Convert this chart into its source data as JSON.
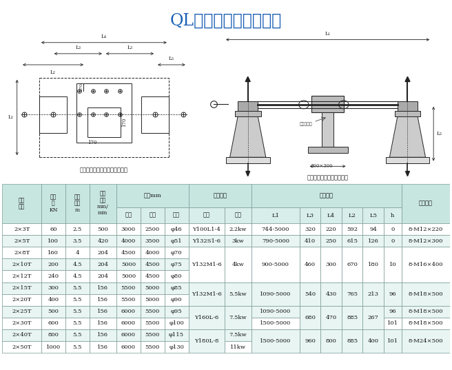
{
  "title": "QL双吹点螺杆式启闭机",
  "title_color": "#1a5fb4",
  "bg_color": "#ffffff",
  "table_header_bg": "#c8e6e0",
  "table_subheader_bg": "#d8eeea",
  "table_row_bg1": "#ffffff",
  "table_row_bg2": "#e8f5f2",
  "diagram_label_left": "双吹点螺杆式启闭机基础布置图",
  "diagram_label_right": "双吹点螺杆式启闭机外形图",
  "col_widths": [
    6.5,
    4,
    4,
    4.5,
    4,
    4,
    4,
    6,
    4.5,
    8,
    3.5,
    3.5,
    3.5,
    3.5,
    3,
    8
  ],
  "rows": [
    [
      "2×3T",
      "60",
      "2.5",
      "500",
      "3000",
      "2500",
      "φ46",
      "Y100L1-4",
      "2.2kw",
      "744-5000",
      "320",
      "220",
      "592",
      "94",
      "0",
      "8-M12×220"
    ],
    [
      "2×5T",
      "100",
      "3.5",
      "420",
      "4000",
      "3500",
      "φ51",
      "Y132S1-6",
      "3kw",
      "790-5000",
      "410",
      "250",
      "615",
      "126",
      "0",
      "8-M12×300"
    ],
    [
      "2×8T",
      "160",
      "4",
      "204",
      "4500",
      "4000",
      "φ70",
      "Y132M1-6",
      "4kw",
      "900-5000",
      "460",
      "300",
      "670",
      "180",
      "10",
      "8-M16×400"
    ],
    [
      "2×10T",
      "200",
      "4.5",
      "204",
      "5000",
      "4500",
      "φ75",
      "",
      "",
      "",
      "",
      "",
      "",
      "",
      "",
      ""
    ],
    [
      "2×12T",
      "240",
      "4.5",
      "204",
      "5000",
      "4500",
      "φ80",
      "",
      "",
      "",
      "",
      "",
      "",
      "",
      "",
      ""
    ],
    [
      "2×15T",
      "300",
      "5.5",
      "156",
      "5500",
      "5000",
      "φ85",
      "Y132M1-6",
      "5.5kw",
      "1090-5000",
      "540",
      "430",
      "765",
      "213",
      "96",
      "8-M18×500"
    ],
    [
      "2×20T",
      "400",
      "5.5",
      "156",
      "5500",
      "5000",
      "φ90",
      "",
      "",
      "",
      "",
      "",
      "",
      "",
      "",
      ""
    ],
    [
      "2×25T",
      "500",
      "5.5",
      "156",
      "6000",
      "5500",
      "φ95",
      "Y160L-6",
      "7.5kw",
      "1090-5000",
      "680",
      "470",
      "885",
      "267",
      "96",
      "8-M18×500"
    ],
    [
      "2×30T",
      "600",
      "5.5",
      "156",
      "6000",
      "5500",
      "φ100",
      "",
      "",
      "1500-5000",
      "",
      "",
      "",
      "",
      "101",
      "8-M18×500"
    ],
    [
      "2×40T",
      "800",
      "5.5",
      "156",
      "6000",
      "5500",
      "φ115",
      "Y180L-8",
      "7.5kw",
      "1500-5000",
      "960",
      "800",
      "885",
      "400",
      "101",
      "8-M24×500"
    ],
    [
      "2×50T",
      "1000",
      "5.5",
      "156",
      "6000",
      "5500",
      "φ130",
      "",
      "11kw",
      "",
      "",
      "",
      "",
      "",
      "",
      ""
    ]
  ],
  "merges": [
    {
      "rows": [
        2,
        4
      ],
      "col": 7,
      "text": "Y132M1-6"
    },
    {
      "rows": [
        2,
        4
      ],
      "col": 8,
      "text": "4kw"
    },
    {
      "rows": [
        2,
        4
      ],
      "col": 9,
      "text": "900-5000"
    },
    {
      "rows": [
        2,
        4
      ],
      "col": 10,
      "text": "460"
    },
    {
      "rows": [
        2,
        4
      ],
      "col": 11,
      "text": "300"
    },
    {
      "rows": [
        2,
        4
      ],
      "col": 12,
      "text": "670"
    },
    {
      "rows": [
        2,
        4
      ],
      "col": 13,
      "text": "180"
    },
    {
      "rows": [
        2,
        4
      ],
      "col": 14,
      "text": "10"
    },
    {
      "rows": [
        2,
        4
      ],
      "col": 15,
      "text": "8-M16×400"
    },
    {
      "rows": [
        5,
        6
      ],
      "col": 7,
      "text": "Y132M1-6"
    },
    {
      "rows": [
        5,
        6
      ],
      "col": 8,
      "text": "5.5kw"
    },
    {
      "rows": [
        5,
        6
      ],
      "col": 9,
      "text": "1090-5000"
    },
    {
      "rows": [
        5,
        6
      ],
      "col": 10,
      "text": "540"
    },
    {
      "rows": [
        5,
        6
      ],
      "col": 11,
      "text": "430"
    },
    {
      "rows": [
        5,
        6
      ],
      "col": 12,
      "text": "765"
    },
    {
      "rows": [
        5,
        6
      ],
      "col": 13,
      "text": "213"
    },
    {
      "rows": [
        5,
        6
      ],
      "col": 14,
      "text": "96"
    },
    {
      "rows": [
        5,
        6
      ],
      "col": 15,
      "text": "8-M18×500"
    },
    {
      "rows": [
        7,
        8
      ],
      "col": 7,
      "text": "Y160L-6"
    },
    {
      "rows": [
        7,
        8
      ],
      "col": 8,
      "text": "7.5kw"
    },
    {
      "rows": [
        7,
        8
      ],
      "col": 10,
      "text": "680"
    },
    {
      "rows": [
        7,
        8
      ],
      "col": 11,
      "text": "470"
    },
    {
      "rows": [
        7,
        8
      ],
      "col": 12,
      "text": "885"
    },
    {
      "rows": [
        7,
        8
      ],
      "col": 13,
      "text": "267"
    },
    {
      "rows": [
        9,
        10
      ],
      "col": 7,
      "text": "Y180L-8"
    },
    {
      "rows": [
        9,
        10
      ],
      "col": 9,
      "text": "1500-5000"
    },
    {
      "rows": [
        9,
        10
      ],
      "col": 10,
      "text": "960"
    },
    {
      "rows": [
        9,
        10
      ],
      "col": 11,
      "text": "800"
    },
    {
      "rows": [
        9,
        10
      ],
      "col": 12,
      "text": "885"
    },
    {
      "rows": [
        9,
        10
      ],
      "col": 13,
      "text": "400"
    },
    {
      "rows": [
        9,
        10
      ],
      "col": 14,
      "text": "101"
    },
    {
      "rows": [
        9,
        10
      ],
      "col": 15,
      "text": "8-M24×500"
    }
  ]
}
